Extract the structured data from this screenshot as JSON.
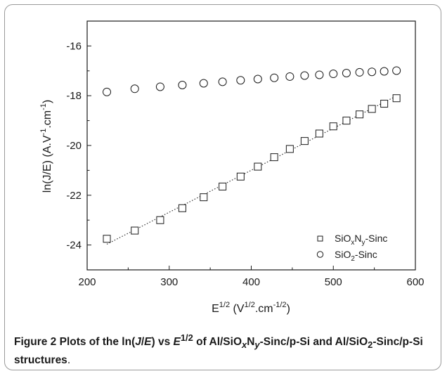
{
  "chart_data": {
    "type": "scatter",
    "xlabel": "E^(1/2) (V^(1/2).cm^(-1/2))",
    "ylabel": "ln(J/E) (A.V^-1.cm^-1)",
    "xlim": [
      200,
      600
    ],
    "ylim": [
      -25,
      -15
    ],
    "xticks": [
      200,
      300,
      400,
      500,
      600
    ],
    "yticks": [
      -24,
      -22,
      -20,
      -18,
      -16
    ],
    "legend_position": "bottom-right",
    "series": [
      {
        "name": "SiOxNy-Sinc",
        "marker": "square",
        "x": [
          224,
          258,
          289,
          316,
          342,
          365,
          387,
          408,
          428,
          447,
          465,
          483,
          500,
          516,
          532,
          547,
          562,
          577
        ],
        "y": [
          -23.75,
          -23.42,
          -23.0,
          -22.52,
          -22.08,
          -21.65,
          -21.25,
          -20.85,
          -20.47,
          -20.14,
          -19.82,
          -19.52,
          -19.23,
          -19.0,
          -18.75,
          -18.53,
          -18.32,
          -18.1
        ],
        "fit_line": {
          "x": [
            224,
            577
          ],
          "style": "dotted"
        }
      },
      {
        "name": "SiO2-Sinc",
        "marker": "circle",
        "x": [
          224,
          258,
          289,
          316,
          342,
          365,
          387,
          408,
          428,
          447,
          465,
          483,
          500,
          516,
          532,
          547,
          562,
          577
        ],
        "y": [
          -17.85,
          -17.72,
          -17.64,
          -17.57,
          -17.5,
          -17.44,
          -17.38,
          -17.33,
          -17.28,
          -17.23,
          -17.19,
          -17.16,
          -17.12,
          -17.09,
          -17.06,
          -17.04,
          -17.02,
          -16.99
        ]
      }
    ]
  },
  "legend": {
    "s1_base": "SiO",
    "s1_sub1": "x",
    "s1_mid": "N",
    "s1_sub2": "y",
    "s1_tail": "-Sinc",
    "s2_base": "SiO",
    "s2_sub": "2",
    "s2_tail": "-Sinc"
  },
  "axis_text": {
    "y_main": "ln(J/E) (A.V",
    "y_sup1": "-1",
    "y_mid": ".cm",
    "y_sup2": "-1",
    "y_close": ")",
    "x_main": "E",
    "x_sup1": "1/2",
    "x_mid": " (V",
    "x_sup2": "1/2",
    "x_mid2": ".cm",
    "x_sup3": "-1/2",
    "x_close": ")"
  },
  "caption": {
    "label": "Figure 2",
    "t1": " Plots of the ln(",
    "t1_i": "J",
    "t2": "/",
    "t2_i": "E",
    "t3": ") vs ",
    "t3_i": "E",
    "sup": "1/2",
    "t4": " of Al/SiO",
    "sub_x": "x",
    "t5": "N",
    "sub_y": "y",
    "t6": "-Sinc/p-Si and Al/SiO",
    "sub_2": "2",
    "t7": "-Sinc/p-Si structures",
    "end": "."
  },
  "colors": {
    "marker": "#1a1a1a",
    "axis": "#1a1a1a",
    "fit": "#333333"
  }
}
